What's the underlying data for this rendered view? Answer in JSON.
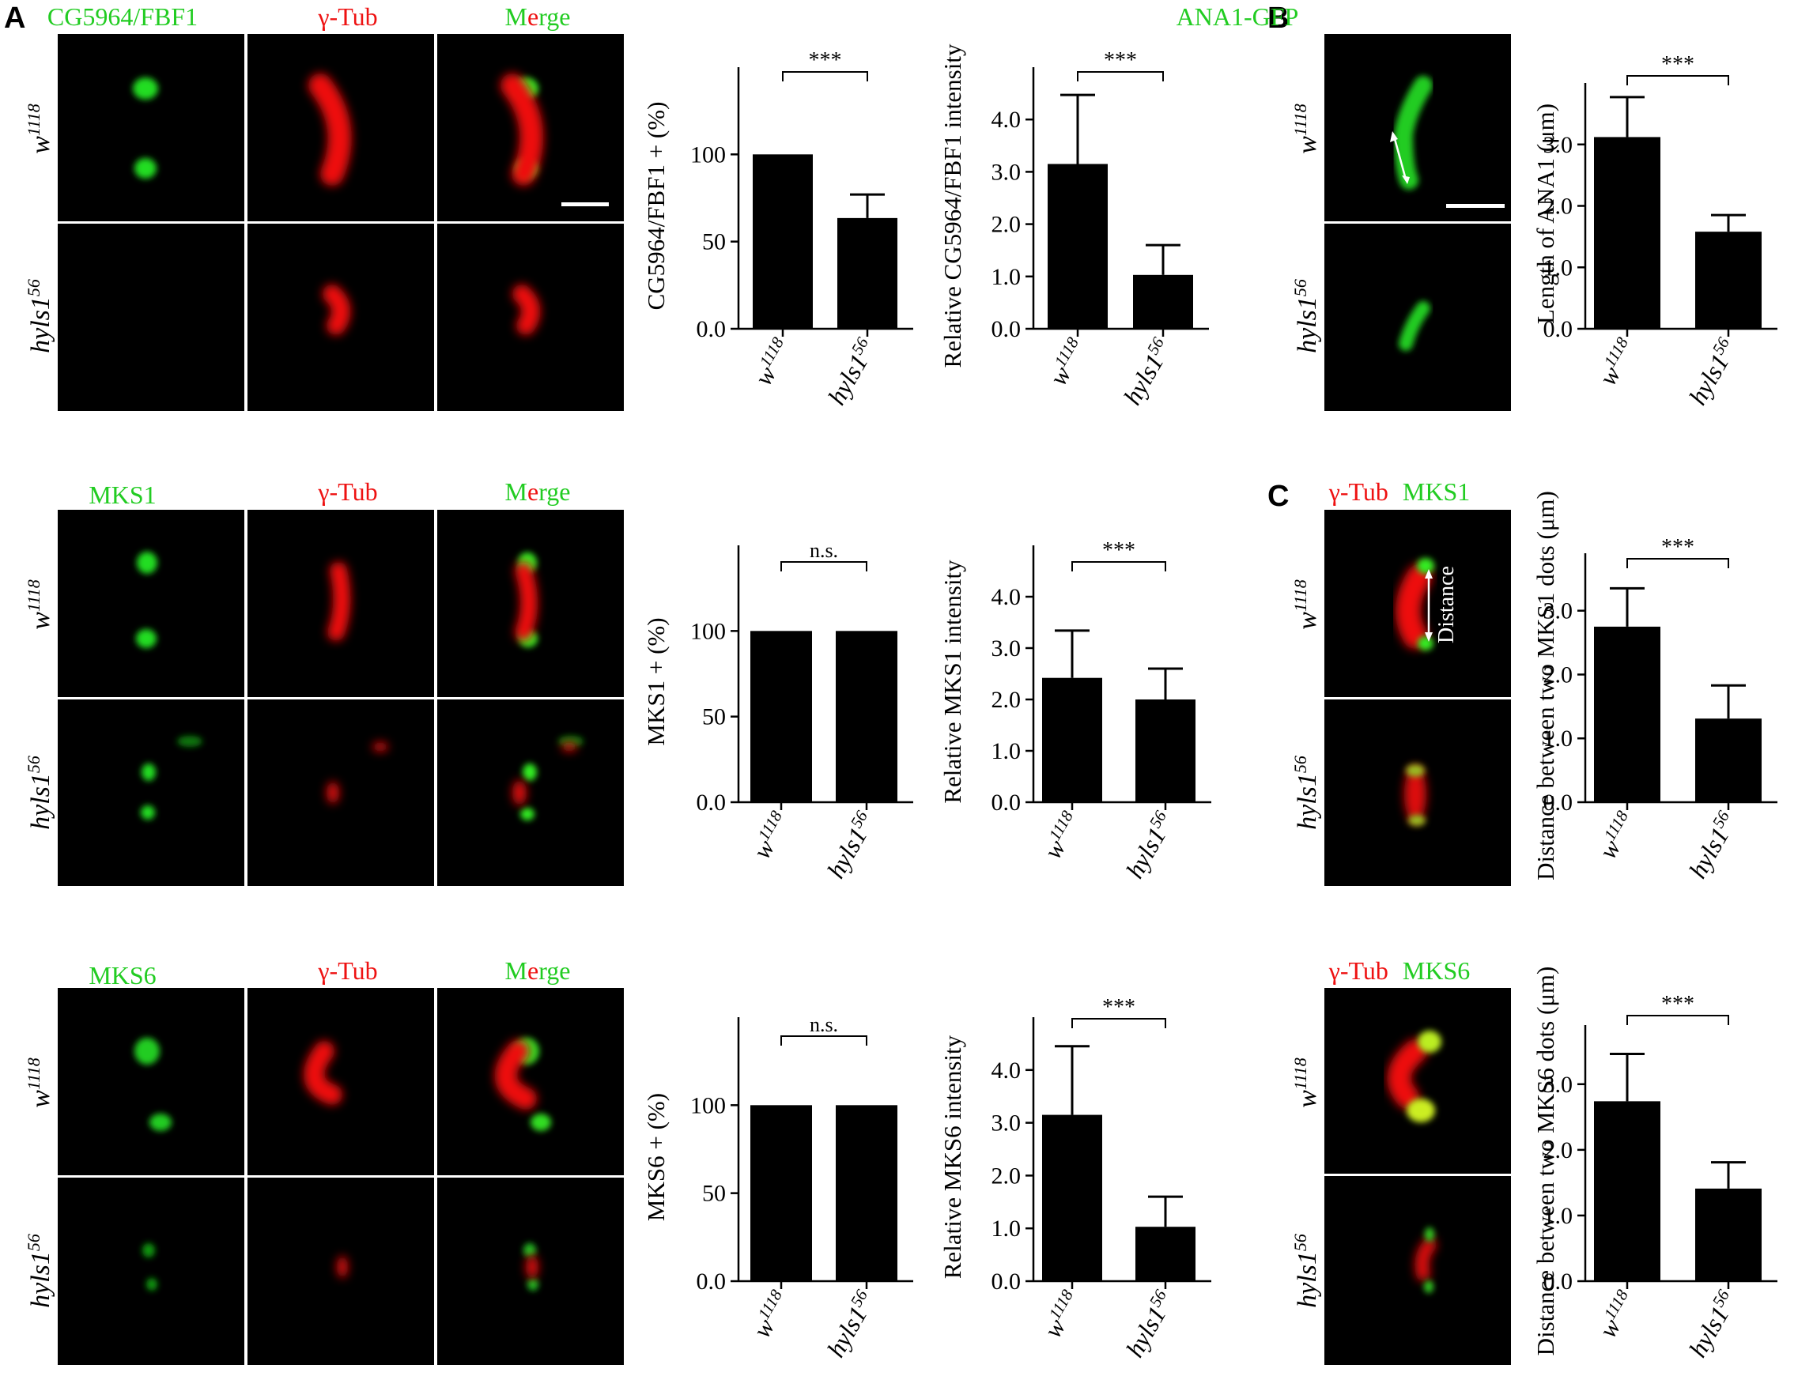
{
  "panel_labels": [
    "A",
    "B",
    "C"
  ],
  "genotypes": {
    "wt": {
      "base": "w",
      "sup": "1118"
    },
    "mut": {
      "base": "hyls1",
      "sup": "56"
    }
  },
  "channel_titles": {
    "gamma_tub": "γ-Tub",
    "merge_m": "M",
    "merge_e": "e",
    "merge_rge": "rge",
    "c1_red": "γ-Tub",
    "c1_green": "MKS1",
    "c2_red": "γ-Tub",
    "c2_green": "MKS6"
  },
  "image_rows": [
    {
      "green_label": "CG5964/FBF1"
    },
    {
      "green_label": "MKS1"
    },
    {
      "green_label": "MKS6"
    }
  ],
  "panelB": {
    "title": "ANA1-GFP"
  },
  "panelC": {
    "annotation": "Distance"
  },
  "colors": {
    "green": "#22cc22",
    "red": "#ee1111",
    "bar": "#000000",
    "arrow": "#ffffff"
  },
  "chart_data": [
    {
      "type": "bar",
      "categories": [
        "w1118",
        "hyls156"
      ],
      "values": [
        100,
        63.5
      ],
      "errors": [
        0,
        13.5
      ],
      "ylim": [
        0,
        150
      ],
      "yticks": [
        "0.0",
        "50",
        "100"
      ],
      "ytick_values": [
        0,
        50,
        100
      ],
      "ylabel": "CG5964/FBF1 + (%)",
      "significance": "***"
    },
    {
      "type": "bar",
      "categories": [
        "w1118",
        "hyls156"
      ],
      "values": [
        3.15,
        1.03
      ],
      "errors": [
        1.32,
        0.57
      ],
      "ylim": [
        0,
        5.0
      ],
      "yticks": [
        "0.0",
        "1.0",
        "2.0",
        "3.0",
        "4.0"
      ],
      "ytick_values": [
        0,
        1,
        2,
        3,
        4
      ],
      "ylabel": "Relative CG5964/FBF1 intensity",
      "significance": "***"
    },
    {
      "type": "bar",
      "categories": [
        "w1118",
        "hyls156"
      ],
      "values": [
        100,
        100
      ],
      "errors": [
        0,
        0
      ],
      "ylim": [
        0,
        150
      ],
      "yticks": [
        "0.0",
        "50",
        "100"
      ],
      "ytick_values": [
        0,
        50,
        100
      ],
      "ylabel": "MKS1 + (%)",
      "significance": "n.s."
    },
    {
      "type": "bar",
      "categories": [
        "w1118",
        "hyls156"
      ],
      "values": [
        2.42,
        2.0
      ],
      "errors": [
        0.92,
        0.6
      ],
      "ylim": [
        0,
        5.0
      ],
      "yticks": [
        "0.0",
        "1.0",
        "2.0",
        "3.0",
        "4.0"
      ],
      "ytick_values": [
        0,
        1,
        2,
        3,
        4
      ],
      "ylabel": "Relative MKS1 intensity",
      "significance": "***"
    },
    {
      "type": "bar",
      "categories": [
        "w1118",
        "hyls156"
      ],
      "values": [
        100,
        100
      ],
      "errors": [
        0,
        0
      ],
      "ylim": [
        0,
        150
      ],
      "yticks": [
        "0.0",
        "50",
        "100"
      ],
      "ytick_values": [
        0,
        50,
        100
      ],
      "ylabel": "MKS6 + (%)",
      "significance": "n.s."
    },
    {
      "type": "bar",
      "categories": [
        "w1118",
        "hyls156"
      ],
      "values": [
        3.15,
        1.03
      ],
      "errors": [
        1.3,
        0.57
      ],
      "ylim": [
        0,
        5.0
      ],
      "yticks": [
        "0.0",
        "1.0",
        "2.0",
        "3.0",
        "4.0"
      ],
      "ytick_values": [
        0,
        1,
        2,
        3,
        4
      ],
      "ylabel": "Relative MKS6 intensity",
      "significance": "***"
    },
    {
      "type": "bar",
      "categories": [
        "w1118",
        "hyls156"
      ],
      "values": [
        3.12,
        1.58
      ],
      "errors": [
        0.65,
        0.27
      ],
      "ylim": [
        0,
        4.0
      ],
      "yticks": [
        "0.0",
        "1.0",
        "2.0",
        "3.0"
      ],
      "ytick_values": [
        0,
        1,
        2,
        3
      ],
      "ylabel": "Length of ANA1 (μm)",
      "significance": "***"
    },
    {
      "type": "bar",
      "categories": [
        "w1118",
        "hyls156"
      ],
      "values": [
        2.75,
        1.31
      ],
      "errors": [
        0.6,
        0.52
      ],
      "ylim": [
        0,
        3.9
      ],
      "yticks": [
        "0.0",
        "1.0",
        "2.0",
        "3.0"
      ],
      "ytick_values": [
        0,
        1,
        2,
        3
      ],
      "ylabel": "Distance between two MKS1 dots (μm)",
      "significance": "***"
    },
    {
      "type": "bar",
      "categories": [
        "w1118",
        "hyls156"
      ],
      "values": [
        2.74,
        1.41
      ],
      "errors": [
        0.72,
        0.4
      ],
      "ylim": [
        0,
        3.9
      ],
      "yticks": [
        "0.0",
        "1.0",
        "2.0",
        "3.0"
      ],
      "ytick_values": [
        0,
        1,
        2,
        3
      ],
      "ylabel": "Distance between two MKS6 dots (μm)",
      "significance": "***"
    }
  ]
}
